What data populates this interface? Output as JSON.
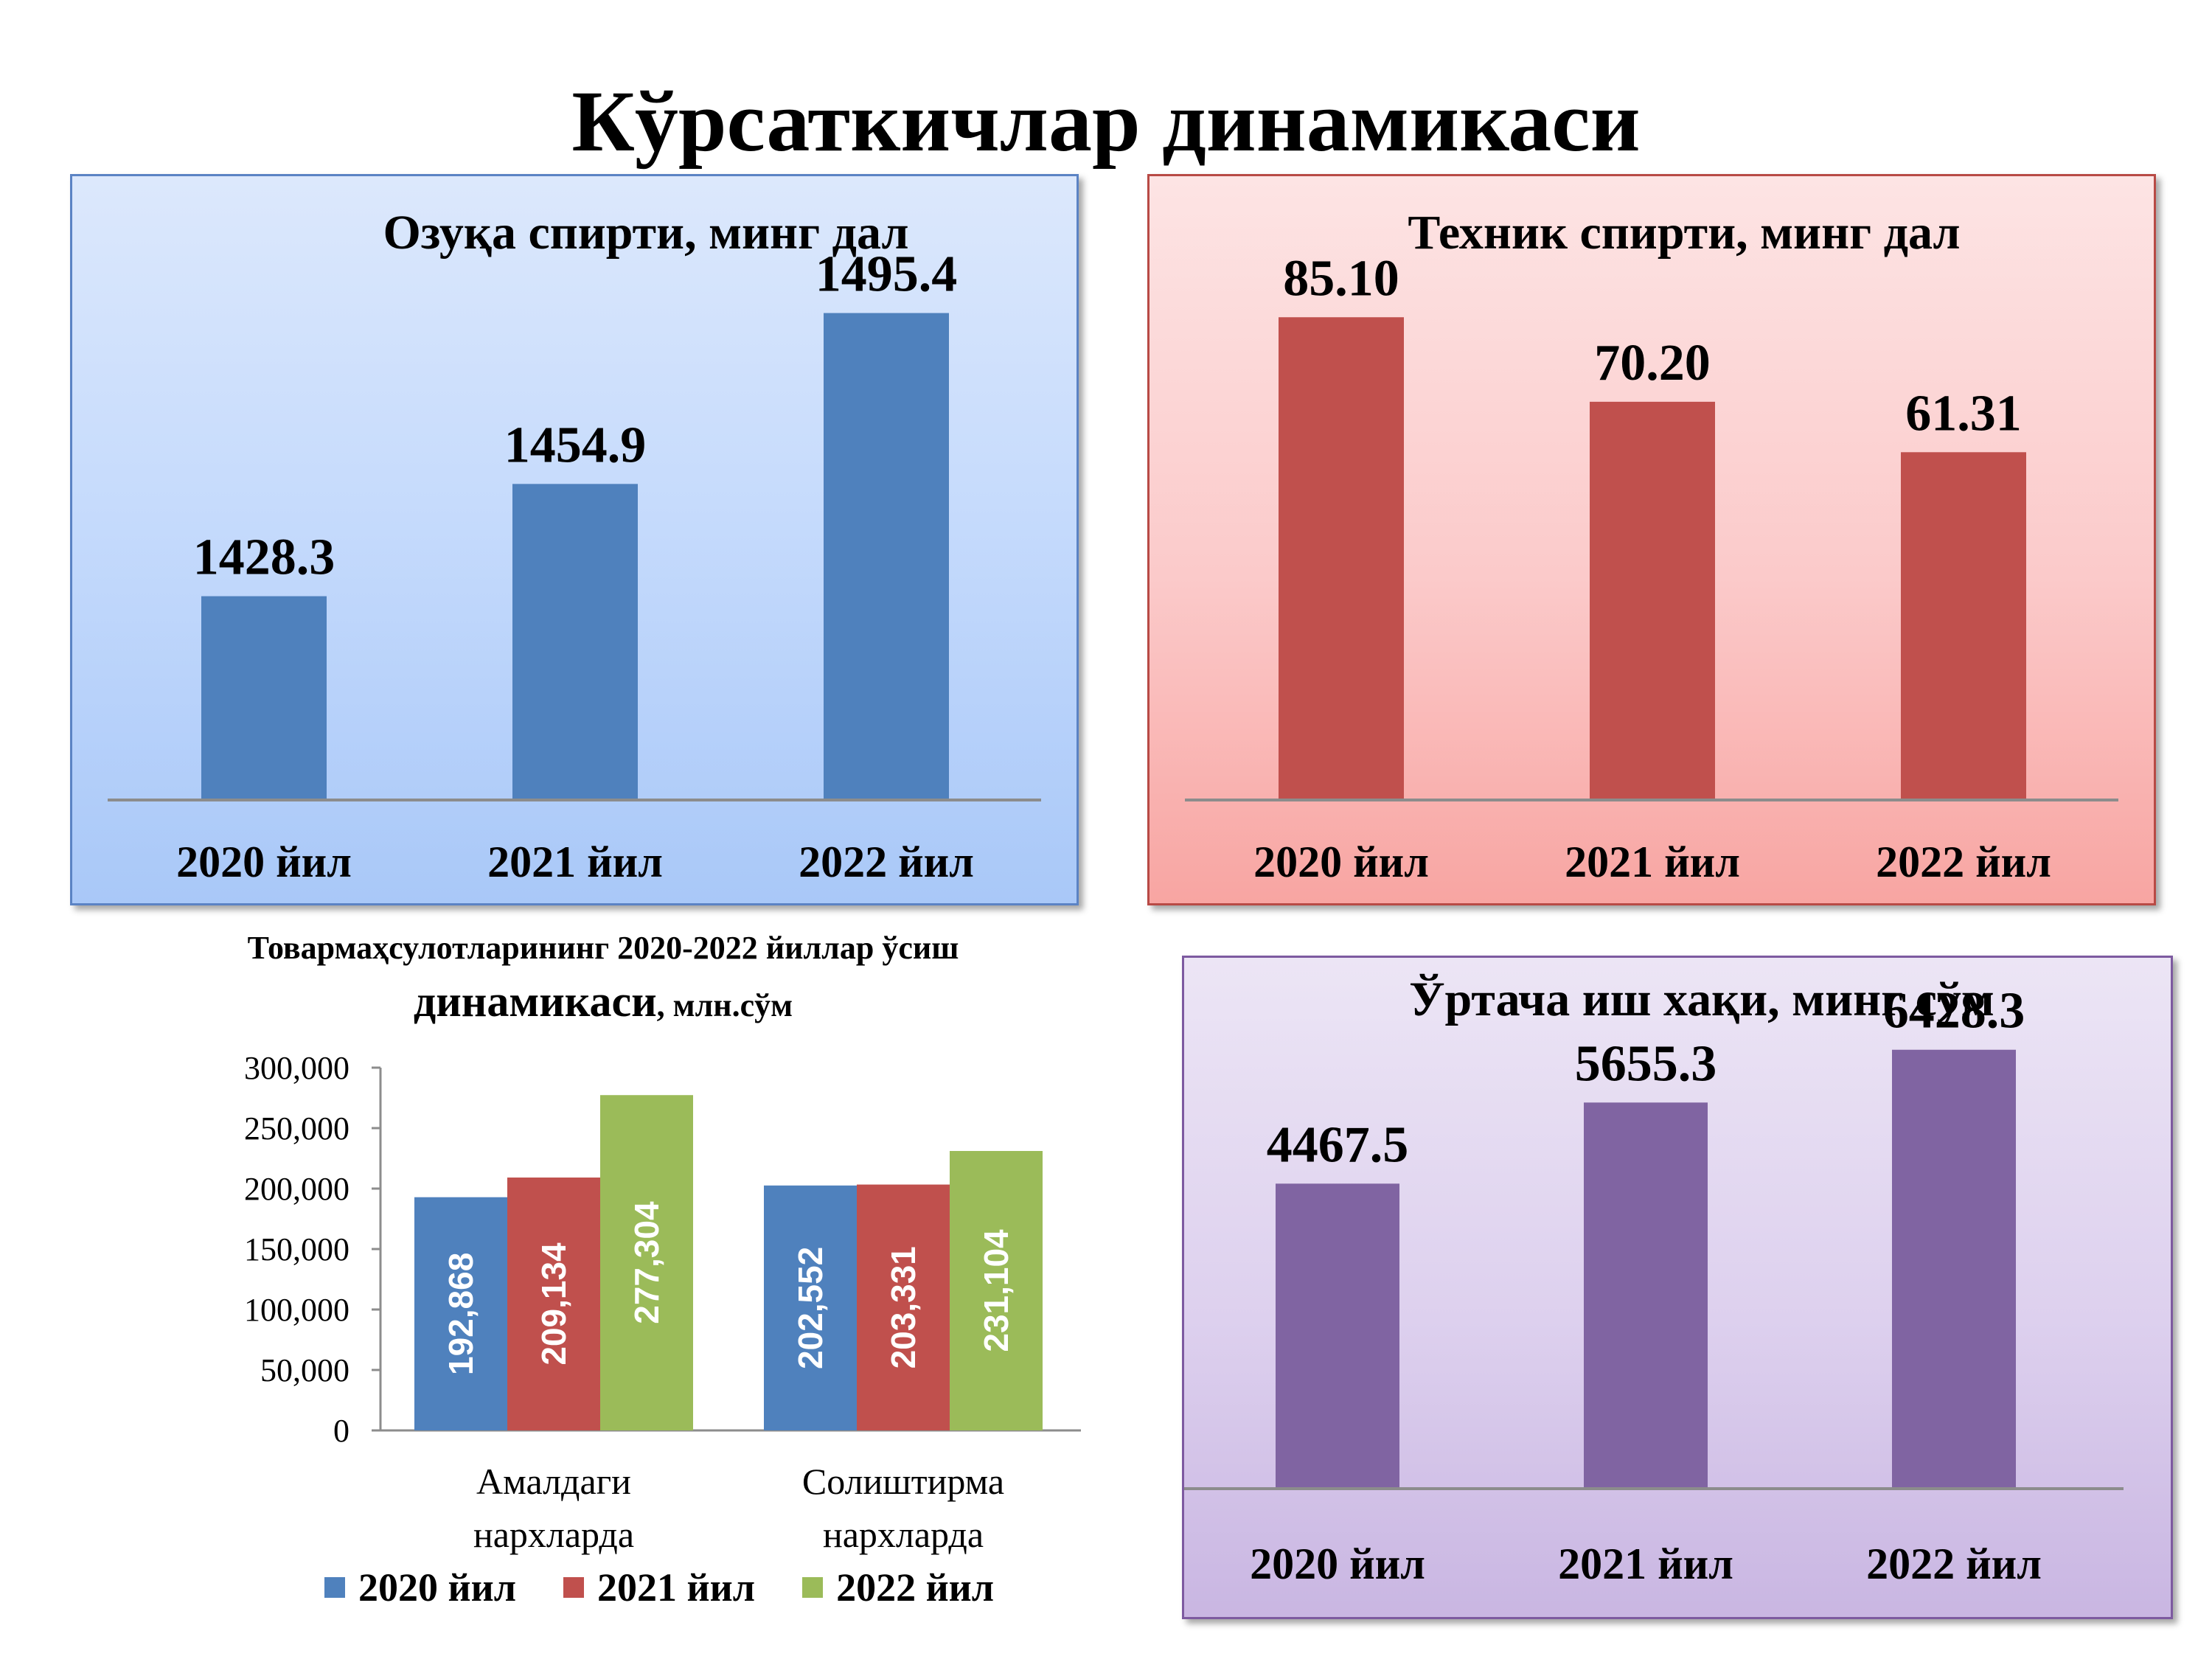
{
  "page": {
    "title": "Кўрсаткичлар динамикаси"
  },
  "chart_data": [
    {
      "id": "food",
      "type": "bar",
      "title": "Озуқа спирти, минг дал",
      "categories": [
        "2020 йил",
        "2021 йил",
        "2022 йил"
      ],
      "values": [
        1428.3,
        1454.9,
        1495.4
      ],
      "value_labels": [
        "1428.3",
        "1454.9",
        "1495.4"
      ],
      "ylim": [
        1380,
        1510
      ],
      "color": "#4f81bd",
      "grid": false
    },
    {
      "id": "tech",
      "type": "bar",
      "title": "Техник спирти, минг дал",
      "categories": [
        "2020 йил",
        "2021 йил",
        "2022 йил"
      ],
      "values": [
        85.1,
        70.2,
        61.31
      ],
      "value_labels": [
        "85.10",
        "70.20",
        "61.31"
      ],
      "ylim": [
        0,
        98
      ],
      "color": "#c0504d",
      "grid": false
    },
    {
      "id": "goods",
      "type": "bar",
      "title": "Товармаҳсулотларининг 2020-2022 йиллар ўсиш",
      "title_line2_main": "динамикаси",
      "title_line2_unit": ", млн.сўм",
      "categories": [
        "Амалдаги нархларда",
        "Солиштирма нархларда"
      ],
      "category_lines": [
        [
          "Амалдаги",
          "нархларда"
        ],
        [
          "Солиштирма",
          "нархларда"
        ]
      ],
      "series": [
        {
          "name": "2020 йил",
          "values": [
            192868,
            202552
          ],
          "labels": [
            "192,868",
            "202,552"
          ],
          "color": "#4f81bd"
        },
        {
          "name": "2021 йил",
          "values": [
            209134,
            203331
          ],
          "labels": [
            "209,134",
            "203,331"
          ],
          "color": "#c0504d"
        },
        {
          "name": "2022 йил",
          "values": [
            277304,
            231104
          ],
          "labels": [
            "277,304",
            "231,104"
          ],
          "color": "#9bbb59"
        }
      ],
      "ylim": [
        0,
        300000
      ],
      "yticks": [
        0,
        50000,
        100000,
        150000,
        200000,
        250000,
        300000
      ],
      "ytick_labels": [
        "0",
        "50,000",
        "100,000",
        "150,000",
        "200,000",
        "250,000",
        "300,000"
      ],
      "legend_position": "bottom",
      "grid": false
    },
    {
      "id": "wage",
      "type": "bar",
      "title": "Ўртача иш хақи, минг сўм",
      "categories": [
        "2020 йил",
        "2021 йил",
        "2022 йил"
      ],
      "values": [
        4467.5,
        5655.3,
        6428.3
      ],
      "value_labels": [
        "4467.5",
        "5655.3",
        "6428.3"
      ],
      "ylim": [
        0,
        7300
      ],
      "color": "#8064a2",
      "grid": false
    }
  ]
}
